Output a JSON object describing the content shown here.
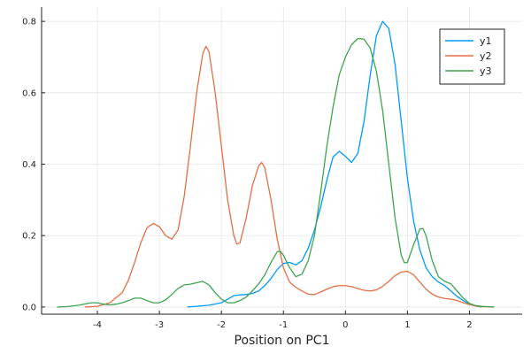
{
  "chart_data": {
    "type": "line",
    "title": "",
    "xlabel": "Position on PC1",
    "ylabel": "",
    "xlim": [
      -4.9,
      2.85
    ],
    "ylim": [
      -0.02,
      0.84
    ],
    "x_ticks": [
      -4,
      -3,
      -2,
      -1,
      0,
      1,
      2
    ],
    "y_ticks": [
      0.0,
      0.2,
      0.4,
      0.6,
      0.8
    ],
    "grid": true,
    "legend_position": "top-right",
    "series": [
      {
        "name": "y1",
        "color": "#009AFA",
        "points": [
          [
            -2.55,
            0.0
          ],
          [
            -2.4,
            0.002
          ],
          [
            -2.2,
            0.005
          ],
          [
            -2.0,
            0.012
          ],
          [
            -1.9,
            0.022
          ],
          [
            -1.8,
            0.032
          ],
          [
            -1.7,
            0.034
          ],
          [
            -1.6,
            0.035
          ],
          [
            -1.5,
            0.038
          ],
          [
            -1.4,
            0.045
          ],
          [
            -1.3,
            0.06
          ],
          [
            -1.2,
            0.08
          ],
          [
            -1.1,
            0.105
          ],
          [
            -1.0,
            0.122
          ],
          [
            -0.9,
            0.125
          ],
          [
            -0.8,
            0.118
          ],
          [
            -0.7,
            0.13
          ],
          [
            -0.6,
            0.165
          ],
          [
            -0.5,
            0.215
          ],
          [
            -0.4,
            0.28
          ],
          [
            -0.3,
            0.355
          ],
          [
            -0.2,
            0.42
          ],
          [
            -0.1,
            0.436
          ],
          [
            0.0,
            0.422
          ],
          [
            0.1,
            0.405
          ],
          [
            0.2,
            0.43
          ],
          [
            0.3,
            0.52
          ],
          [
            0.4,
            0.65
          ],
          [
            0.5,
            0.76
          ],
          [
            0.6,
            0.8
          ],
          [
            0.7,
            0.78
          ],
          [
            0.8,
            0.68
          ],
          [
            0.9,
            0.52
          ],
          [
            1.0,
            0.36
          ],
          [
            1.1,
            0.24
          ],
          [
            1.2,
            0.16
          ],
          [
            1.3,
            0.11
          ],
          [
            1.4,
            0.085
          ],
          [
            1.5,
            0.07
          ],
          [
            1.6,
            0.06
          ],
          [
            1.7,
            0.045
          ],
          [
            1.8,
            0.03
          ],
          [
            1.9,
            0.018
          ],
          [
            2.0,
            0.008
          ],
          [
            2.1,
            0.003
          ],
          [
            2.2,
            0.0
          ]
        ]
      },
      {
        "name": "y2",
        "color": "#E26F46",
        "points": [
          [
            -4.2,
            0.0
          ],
          [
            -4.0,
            0.002
          ],
          [
            -3.8,
            0.012
          ],
          [
            -3.6,
            0.04
          ],
          [
            -3.5,
            0.075
          ],
          [
            -3.4,
            0.125
          ],
          [
            -3.3,
            0.18
          ],
          [
            -3.2,
            0.222
          ],
          [
            -3.1,
            0.234
          ],
          [
            -3.0,
            0.225
          ],
          [
            -2.9,
            0.2
          ],
          [
            -2.8,
            0.19
          ],
          [
            -2.7,
            0.215
          ],
          [
            -2.6,
            0.31
          ],
          [
            -2.5,
            0.45
          ],
          [
            -2.4,
            0.6
          ],
          [
            -2.3,
            0.71
          ],
          [
            -2.25,
            0.73
          ],
          [
            -2.2,
            0.715
          ],
          [
            -2.1,
            0.6
          ],
          [
            -2.0,
            0.45
          ],
          [
            -1.9,
            0.3
          ],
          [
            -1.8,
            0.2
          ],
          [
            -1.75,
            0.176
          ],
          [
            -1.7,
            0.18
          ],
          [
            -1.6,
            0.25
          ],
          [
            -1.5,
            0.34
          ],
          [
            -1.4,
            0.395
          ],
          [
            -1.35,
            0.405
          ],
          [
            -1.3,
            0.39
          ],
          [
            -1.2,
            0.3
          ],
          [
            -1.1,
            0.19
          ],
          [
            -1.0,
            0.11
          ],
          [
            -0.9,
            0.07
          ],
          [
            -0.8,
            0.055
          ],
          [
            -0.7,
            0.045
          ],
          [
            -0.6,
            0.036
          ],
          [
            -0.5,
            0.035
          ],
          [
            -0.4,
            0.042
          ],
          [
            -0.3,
            0.05
          ],
          [
            -0.2,
            0.057
          ],
          [
            -0.1,
            0.06
          ],
          [
            0.0,
            0.06
          ],
          [
            0.1,
            0.057
          ],
          [
            0.2,
            0.052
          ],
          [
            0.3,
            0.047
          ],
          [
            0.4,
            0.045
          ],
          [
            0.5,
            0.048
          ],
          [
            0.6,
            0.058
          ],
          [
            0.7,
            0.072
          ],
          [
            0.8,
            0.088
          ],
          [
            0.9,
            0.098
          ],
          [
            1.0,
            0.1
          ],
          [
            1.1,
            0.09
          ],
          [
            1.2,
            0.07
          ],
          [
            1.3,
            0.05
          ],
          [
            1.4,
            0.036
          ],
          [
            1.5,
            0.028
          ],
          [
            1.6,
            0.024
          ],
          [
            1.7,
            0.022
          ],
          [
            1.8,
            0.018
          ],
          [
            1.9,
            0.012
          ],
          [
            2.0,
            0.007
          ],
          [
            2.1,
            0.003
          ],
          [
            2.2,
            0.001
          ],
          [
            2.4,
            0.0
          ]
        ]
      },
      {
        "name": "y3",
        "color": "#3EA44E",
        "points": [
          [
            -4.65,
            0.0
          ],
          [
            -4.5,
            0.001
          ],
          [
            -4.3,
            0.005
          ],
          [
            -4.1,
            0.012
          ],
          [
            -4.0,
            0.012
          ],
          [
            -3.9,
            0.008
          ],
          [
            -3.8,
            0.006
          ],
          [
            -3.7,
            0.008
          ],
          [
            -3.6,
            0.012
          ],
          [
            -3.5,
            0.018
          ],
          [
            -3.4,
            0.025
          ],
          [
            -3.3,
            0.025
          ],
          [
            -3.2,
            0.018
          ],
          [
            -3.1,
            0.012
          ],
          [
            -3.0,
            0.012
          ],
          [
            -2.9,
            0.02
          ],
          [
            -2.8,
            0.035
          ],
          [
            -2.7,
            0.052
          ],
          [
            -2.6,
            0.062
          ],
          [
            -2.5,
            0.064
          ],
          [
            -2.4,
            0.068
          ],
          [
            -2.3,
            0.072
          ],
          [
            -2.2,
            0.062
          ],
          [
            -2.1,
            0.04
          ],
          [
            -2.0,
            0.022
          ],
          [
            -1.9,
            0.012
          ],
          [
            -1.8,
            0.012
          ],
          [
            -1.7,
            0.018
          ],
          [
            -1.6,
            0.028
          ],
          [
            -1.5,
            0.045
          ],
          [
            -1.4,
            0.065
          ],
          [
            -1.3,
            0.09
          ],
          [
            -1.2,
            0.125
          ],
          [
            -1.1,
            0.155
          ],
          [
            -1.05,
            0.156
          ],
          [
            -1.0,
            0.145
          ],
          [
            -0.9,
            0.11
          ],
          [
            -0.8,
            0.085
          ],
          [
            -0.7,
            0.092
          ],
          [
            -0.6,
            0.13
          ],
          [
            -0.5,
            0.2
          ],
          [
            -0.4,
            0.32
          ],
          [
            -0.3,
            0.45
          ],
          [
            -0.2,
            0.56
          ],
          [
            -0.1,
            0.65
          ],
          [
            0.0,
            0.7
          ],
          [
            0.1,
            0.735
          ],
          [
            0.2,
            0.752
          ],
          [
            0.3,
            0.75
          ],
          [
            0.4,
            0.725
          ],
          [
            0.5,
            0.66
          ],
          [
            0.6,
            0.55
          ],
          [
            0.7,
            0.4
          ],
          [
            0.8,
            0.25
          ],
          [
            0.9,
            0.145
          ],
          [
            0.95,
            0.124
          ],
          [
            1.0,
            0.125
          ],
          [
            1.1,
            0.175
          ],
          [
            1.2,
            0.218
          ],
          [
            1.25,
            0.22
          ],
          [
            1.3,
            0.2
          ],
          [
            1.4,
            0.13
          ],
          [
            1.5,
            0.085
          ],
          [
            1.6,
            0.072
          ],
          [
            1.7,
            0.065
          ],
          [
            1.8,
            0.045
          ],
          [
            1.9,
            0.025
          ],
          [
            2.0,
            0.01
          ],
          [
            2.1,
            0.004
          ],
          [
            2.2,
            0.002
          ],
          [
            2.4,
            0.0
          ]
        ]
      }
    ]
  }
}
